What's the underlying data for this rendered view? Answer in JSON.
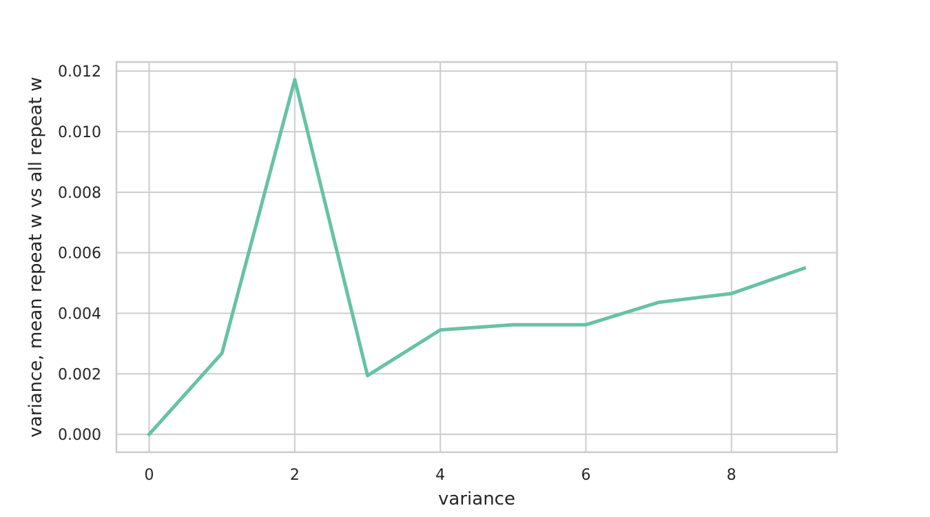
{
  "chart_data": {
    "type": "line",
    "title": "",
    "xlabel": "variance",
    "ylabel": "variance, mean repeat w vs all repeat w",
    "x": [
      0,
      1,
      2,
      3,
      4,
      5,
      6,
      7,
      8,
      9
    ],
    "series": [
      {
        "values": [
          0.0,
          0.00268,
          0.01172,
          0.00194,
          0.00345,
          0.00362,
          0.00362,
          0.00436,
          0.00465,
          0.00549
        ],
        "color": "#66c2a5"
      }
    ],
    "xticks": [
      0,
      2,
      4,
      6,
      8
    ],
    "xtick_labels": [
      "0",
      "2",
      "4",
      "6",
      "8"
    ],
    "yticks": [
      0,
      0.002,
      0.004,
      0.006,
      0.008,
      0.01,
      0.012
    ],
    "ytick_labels": [
      "0.000",
      "0.002",
      "0.004",
      "0.006",
      "0.008",
      "0.010",
      "0.012"
    ],
    "xlim": [
      -0.45,
      9.45
    ],
    "ylim": [
      -0.00059,
      0.0123
    ],
    "grid": true,
    "grid_color": "#cccccc",
    "frame_color": "#cccccc",
    "legend": "none"
  }
}
